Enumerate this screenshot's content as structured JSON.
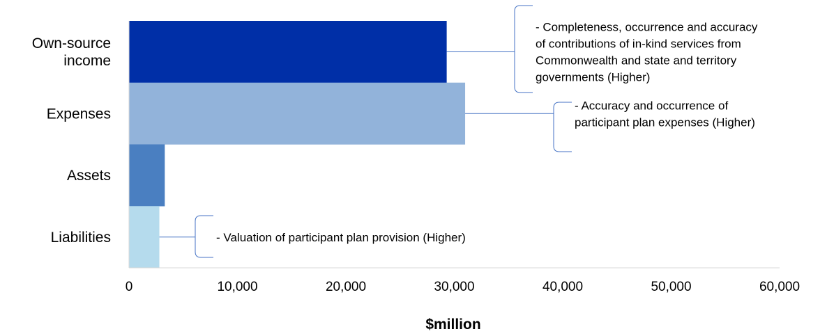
{
  "chart_data": {
    "type": "bar",
    "orientation": "horizontal",
    "categories": [
      "Own-source income",
      "Expenses",
      "Assets",
      "Liabilities"
    ],
    "category_lines": [
      [
        "Own-source",
        "income"
      ],
      [
        "Expenses"
      ],
      [
        "Assets"
      ],
      [
        "Liabilities"
      ]
    ],
    "values": [
      29300,
      31000,
      3300,
      2800
    ],
    "colors": [
      "#002fa7",
      "#92b3da",
      "#4a7fc1",
      "#b5dbed"
    ],
    "xlabel": "$million",
    "xlim": [
      0,
      60000
    ],
    "xticks": [
      "0",
      "10,000",
      "20,000",
      "30,000",
      "40,000",
      "50,000",
      "60,000"
    ],
    "grid": false,
    "legend": "none",
    "annotations": [
      {
        "category": "Own-source income",
        "lines": [
          "- Completeness, occurrence and accuracy",
          "of contributions of in-kind services from",
          "Commonwealth and state and territory",
          "governments (Higher)"
        ]
      },
      {
        "category": "Expenses",
        "lines": [
          "- Accuracy and occurrence of",
          "participant plan expenses (Higher)"
        ]
      },
      {
        "category": "Liabilities",
        "lines": [
          "- Valuation of participant plan provision (Higher)"
        ]
      }
    ]
  }
}
